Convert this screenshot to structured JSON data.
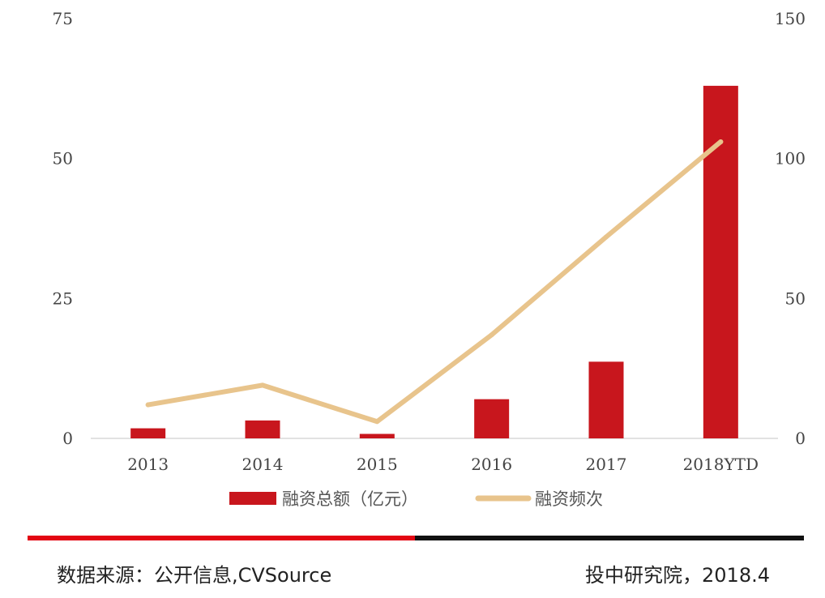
{
  "chart_data": {
    "type": "bar",
    "categories": [
      "2013",
      "2014",
      "2015",
      "2016",
      "2017",
      "2018YTD"
    ],
    "series": [
      {
        "name": "融资总额（亿元）",
        "type": "bar",
        "axis": "left",
        "color": "#c8161d",
        "values": [
          1.8,
          3.2,
          0.8,
          7.0,
          13.7,
          63.0
        ]
      },
      {
        "name": "融资频次",
        "type": "line",
        "axis": "right",
        "color": "#e8c48c",
        "values": [
          12,
          19,
          6,
          37,
          72,
          106
        ]
      }
    ],
    "y_left": {
      "min": 0,
      "max": 75,
      "ticks": [
        "0",
        "25",
        "50",
        "75"
      ]
    },
    "y_right": {
      "min": 0,
      "max": 150,
      "ticks": [
        "0",
        "50",
        "100",
        "150"
      ]
    },
    "legend_position": "bottom",
    "title": ""
  },
  "footer": {
    "source": "数据来源：公开信息,CVSource",
    "credit": "投中研究院，2018.4",
    "divider_colors": [
      "#e30613",
      "#111111"
    ]
  }
}
